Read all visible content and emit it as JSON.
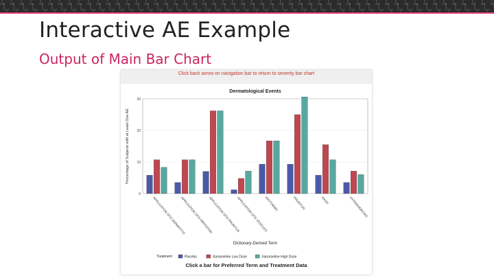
{
  "slide": {
    "title": "Interactive AE Example",
    "subtitle": "Output of Main Bar Chart"
  },
  "figure": {
    "nav_hint": "Click back arrow on navigation bar to return to severity bar chart",
    "bottom_hint": "Click a bar for Preferred Term and Treatment Data"
  },
  "colors": {
    "topbar": "#2b2b2b",
    "accent": "#e0407a",
    "subtitle": "#c8245f",
    "placebo": "#4a5aa8",
    "low_dose": "#c0474f",
    "high_dose": "#58a8a0"
  },
  "chart_data": {
    "type": "bar",
    "title": "Dermatological Events",
    "xlabel": "Dictionary-Derived Term",
    "ylabel": "Percentage of Subjects with at Least One AE",
    "ylim": [
      0,
      30
    ],
    "yticks": [
      0,
      10,
      20,
      30
    ],
    "grid": true,
    "categories": [
      "APPLICATION SITE DERMATITIS",
      "APPLICATION SITE IRRITATION",
      "APPLICATION SITE PRURITUS",
      "APPLICATION SITE VESICLES",
      "ERYTHEMA",
      "PRURITUS",
      "RASH",
      "HYPERHIDROSIS"
    ],
    "series": [
      {
        "name": "Placebo",
        "color": "#4a5aa8",
        "values": [
          5.8,
          3.5,
          7.0,
          1.2,
          9.3,
          9.3,
          5.8,
          3.5
        ]
      },
      {
        "name": "Xanomeline Low Dose",
        "color": "#c0474f",
        "values": [
          10.7,
          10.7,
          26.2,
          4.8,
          16.7,
          25.0,
          15.5,
          7.1
        ]
      },
      {
        "name": "Xanomeline High Dose",
        "color": "#58a8a0",
        "values": [
          8.3,
          10.7,
          26.2,
          7.1,
          16.7,
          31.0,
          10.7,
          6.0
        ]
      }
    ],
    "legend": {
      "title": "Treatment:",
      "position": "bottom"
    }
  }
}
